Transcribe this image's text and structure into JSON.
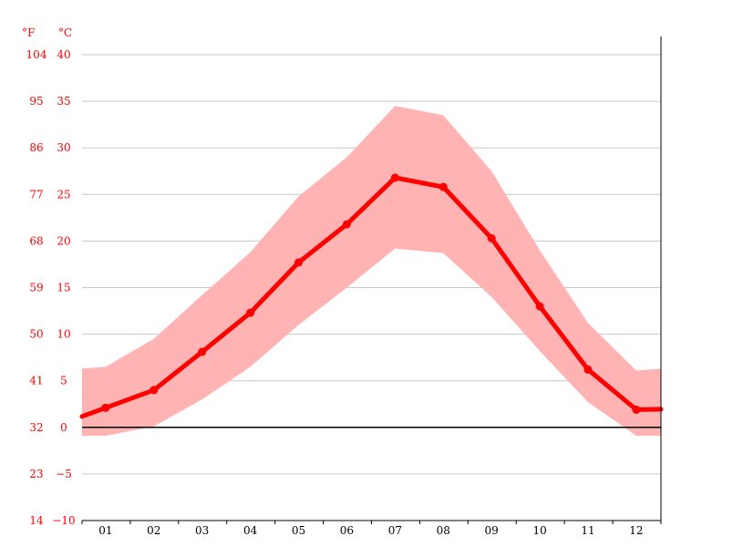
{
  "chart_data": {
    "type": "line",
    "x_unit": "",
    "categories": [
      "01",
      "02",
      "03",
      "04",
      "05",
      "06",
      "07",
      "08",
      "09",
      "10",
      "11",
      "12"
    ],
    "series": [
      {
        "values": [
          2.1,
          4.0,
          8.1,
          12.3,
          17.7,
          21.8,
          26.8,
          25.8,
          20.3,
          13.0,
          6.2,
          1.9
        ]
      }
    ],
    "range_band": {
      "upper": [
        6.5,
        9.5,
        14.2,
        18.8,
        24.8,
        29.0,
        34.5,
        33.5,
        27.5,
        19.0,
        11.2,
        6.1
      ],
      "lower": [
        -0.9,
        0.1,
        3.0,
        6.5,
        11.0,
        15.0,
        19.2,
        18.7,
        14.0,
        8.2,
        2.7,
        -0.9
      ]
    },
    "y_unit_celsius": "°C",
    "y_unit_fahrenheit": "°F",
    "yticks_celsius": [
      "40",
      "35",
      "30",
      "25",
      "20",
      "15",
      "10",
      "5",
      "0",
      "−5",
      "−10"
    ],
    "yticks_fahrenheit": [
      "104",
      "95",
      "86",
      "77",
      "68",
      "59",
      "50",
      "41",
      "32",
      "23",
      "14"
    ],
    "ylim": [
      -10,
      40
    ],
    "grid": true,
    "colors": {
      "line": "#ff0000",
      "band": "#ffb3b3",
      "zero_line": "#000000",
      "grid": "#c8c8c8"
    }
  }
}
